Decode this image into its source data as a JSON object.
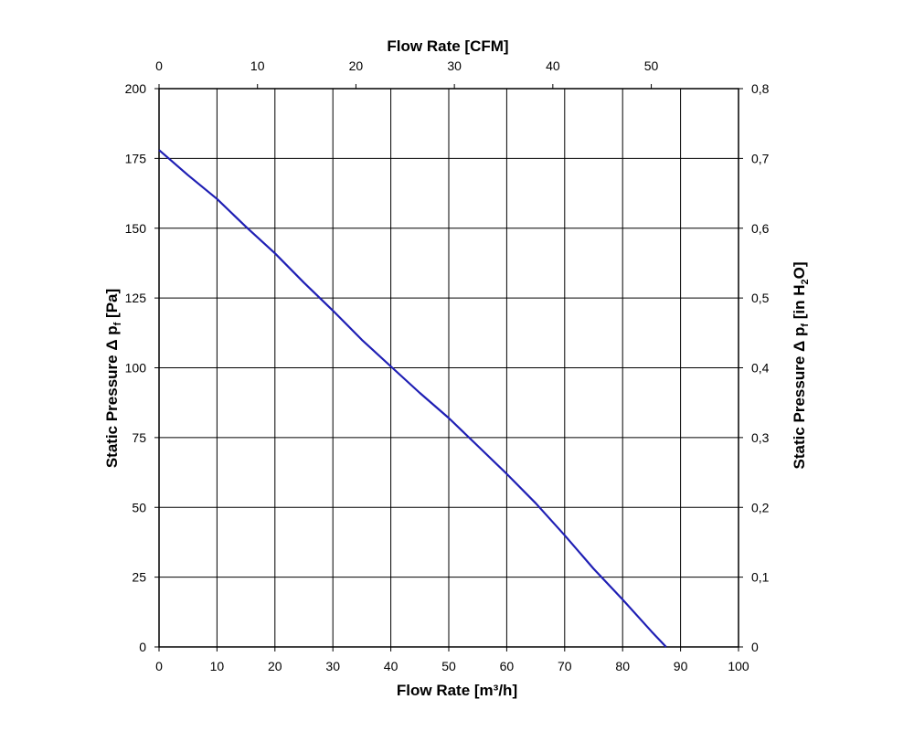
{
  "chart_data": {
    "type": "line",
    "x_bottom": {
      "label": "Flow Rate [m³/h]",
      "range": [
        0,
        100
      ],
      "ticks": [
        "0",
        "10",
        "20",
        "30",
        "40",
        "50",
        "60",
        "70",
        "80",
        "90",
        "100"
      ]
    },
    "x_top": {
      "label": "Flow Rate [CFM]",
      "range": [
        0,
        58.86
      ],
      "ticks": [
        "0",
        "10",
        "20",
        "30",
        "40",
        "50"
      ]
    },
    "y_left": {
      "label_main": "Static Pressure Δ p",
      "label_sub": "f",
      "label_unit": " [Pa]",
      "range": [
        0,
        200
      ],
      "ticks": [
        "0",
        "25",
        "50",
        "75",
        "100",
        "125",
        "150",
        "175",
        "200"
      ]
    },
    "y_right": {
      "label_main": "Static Pressure Δ p",
      "label_sub": "f",
      "label_unit_pre": " [in H",
      "label_unit_sub": "2",
      "label_unit_post": "O]",
      "range": [
        0,
        0.8
      ],
      "ticks": [
        "0",
        "0,1",
        "0,2",
        "0,3",
        "0,4",
        "0,5",
        "0,6",
        "0,7",
        "0,8"
      ]
    },
    "grid": true,
    "series": [
      {
        "color": "#1f1fb4",
        "x": [
          0,
          5,
          10,
          15,
          20,
          25,
          30,
          35,
          40,
          45,
          50,
          55,
          60,
          65,
          70,
          75,
          80,
          85,
          87.5
        ],
        "y": [
          178,
          169,
          160.5,
          150.5,
          141,
          130.5,
          120.5,
          110,
          100.5,
          91,
          82,
          72,
          62,
          51.5,
          40,
          28,
          17,
          5.5,
          0
        ]
      }
    ]
  }
}
